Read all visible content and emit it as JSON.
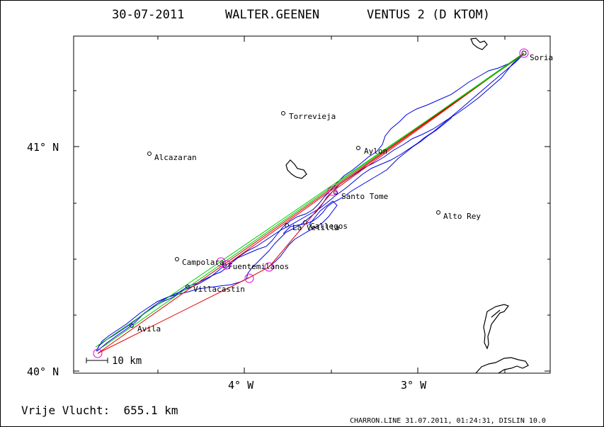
{
  "header": {
    "date": "30-07-2011",
    "pilot": "WALTER.GEENEN",
    "glider": "VENTUS 2 (D KTOM)"
  },
  "axes": {
    "lat_labels": [
      "41° N",
      "40° N"
    ],
    "lon_labels": [
      "4° W",
      "3° W"
    ]
  },
  "scale_bar": {
    "label": "10 km"
  },
  "places": [
    {
      "name": "Soria"
    },
    {
      "name": "Torrevieja"
    },
    {
      "name": "Aylon"
    },
    {
      "name": "Alcazaran"
    },
    {
      "name": "Santo Tome"
    },
    {
      "name": "Alto Rey"
    },
    {
      "name": "Gallegos"
    },
    {
      "name": "La Velilla"
    },
    {
      "name": "Campolara"
    },
    {
      "name": "Fuentemilanos"
    },
    {
      "name": "Villacastin"
    },
    {
      "name": "Avila"
    }
  ],
  "footer": {
    "distance": "Vrije Vlucht:  655.1 km",
    "credit": "CHARRON.LINE 31.07.2011, 01:24:31, DISLIN 10.0"
  },
  "colors": {
    "track": "#0000dd",
    "task_line": "#e00000",
    "optimized_line": "#00cc00",
    "turnpoint": "#dd00dd",
    "coast": "#000000"
  }
}
